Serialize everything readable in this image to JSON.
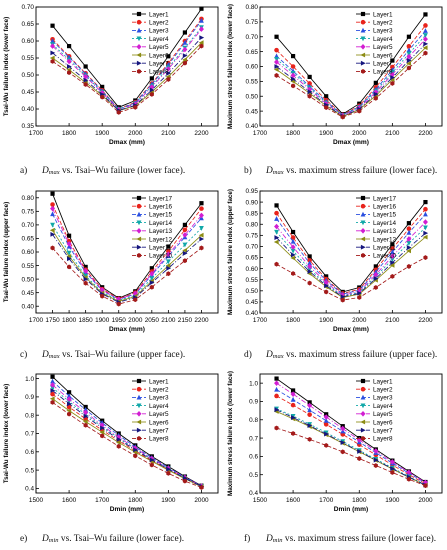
{
  "colors": {
    "Layer1": "#000000",
    "Layer2": "#e8231c",
    "Layer3": "#2a4fe0",
    "Layer4": "#10a8a8",
    "Layer5": "#d21ed2",
    "Layer6": "#8c8c14",
    "Layer7": "#16167e",
    "Layer8": "#a31a1a",
    "Layer17": "#000000",
    "Layer16": "#e8231c",
    "Layer15": "#2a4fe0",
    "Layer14": "#10a8a8",
    "Layer13": "#d21ed2",
    "Layer12": "#8c8c14",
    "Layer11": "#16167e",
    "Layer10": "#a31a1a"
  },
  "captions": [
    {
      "prefix": "a)",
      "var": "D",
      "sub": "max",
      "text": " vs. Tsai–Wu failure (lower face)."
    },
    {
      "prefix": "b)",
      "var": "D",
      "sub": "max",
      "text": " vs. maximum stress failure (lower face)."
    },
    {
      "prefix": "c)",
      "var": "D",
      "sub": "max",
      "text": " vs. Tsai–Wu failure (upper face)."
    },
    {
      "prefix": "d)",
      "var": "D",
      "sub": "max",
      "text": " vs. maximum stress failure (upper face)."
    },
    {
      "prefix": "e)",
      "var": "D",
      "sub": "min",
      "text": " vs. Tsai–Wu failure (lower face)."
    },
    {
      "prefix": "f)",
      "var": "D",
      "sub": "min",
      "text": " vs. maximum stress failure (lower face)."
    }
  ],
  "chart_data": [
    {
      "type": "line",
      "xlabel": "Dmax (mm)",
      "ylabel": "Tsai-Wu failure index (lower face)",
      "xlim": [
        1700,
        2250
      ],
      "ylim": [
        0.35,
        0.7
      ],
      "xticks": [
        "1700",
        "1800",
        "1900",
        "2000",
        "2100",
        "2200"
      ],
      "yticks": [
        "0.35",
        "0.40",
        "0.45",
        "0.50",
        "0.55",
        "0.60",
        "0.65",
        "0.70"
      ],
      "x": [
        1750,
        1800,
        1850,
        1900,
        1950,
        2000,
        2050,
        2100,
        2150,
        2200
      ],
      "series": [
        {
          "name": "Layer1",
          "values": [
            0.645,
            0.585,
            0.525,
            0.465,
            0.405,
            0.425,
            0.49,
            0.555,
            0.625,
            0.695
          ]
        },
        {
          "name": "Layer2",
          "values": [
            0.605,
            0.555,
            0.505,
            0.455,
            0.4,
            0.42,
            0.475,
            0.535,
            0.6,
            0.665
          ]
        },
        {
          "name": "Layer3",
          "values": [
            0.6,
            0.552,
            0.503,
            0.453,
            0.4,
            0.418,
            0.473,
            0.53,
            0.595,
            0.66
          ]
        },
        {
          "name": "Layer4",
          "values": [
            0.59,
            0.545,
            0.498,
            0.45,
            0.399,
            0.416,
            0.468,
            0.522,
            0.58,
            0.64
          ]
        },
        {
          "name": "Layer5",
          "values": [
            0.585,
            0.54,
            0.495,
            0.448,
            0.398,
            0.414,
            0.465,
            0.518,
            0.575,
            0.635
          ]
        },
        {
          "name": "Layer6",
          "values": [
            0.55,
            0.515,
            0.478,
            0.44,
            0.395,
            0.409,
            0.45,
            0.495,
            0.545,
            0.595
          ]
        },
        {
          "name": "Layer7",
          "values": [
            0.565,
            0.525,
            0.485,
            0.443,
            0.396,
            0.411,
            0.456,
            0.505,
            0.557,
            0.61
          ]
        },
        {
          "name": "Layer8",
          "values": [
            0.54,
            0.507,
            0.472,
            0.435,
            0.39,
            0.405,
            0.443,
            0.487,
            0.535,
            0.585
          ]
        }
      ]
    },
    {
      "type": "line",
      "xlabel": "Dmax (mm)",
      "ylabel": "Maximum stress failure index (lower face)",
      "xlim": [
        1700,
        2250
      ],
      "ylim": [
        0.4,
        0.8
      ],
      "xticks": [
        "1700",
        "1800",
        "1900",
        "2000",
        "2100",
        "2200"
      ],
      "yticks": [
        "0.40",
        "0.45",
        "0.50",
        "0.55",
        "0.60",
        "0.65",
        "0.70",
        "0.75",
        "0.80"
      ],
      "x": [
        1750,
        1800,
        1850,
        1900,
        1950,
        2000,
        2050,
        2100,
        2150,
        2200
      ],
      "series": [
        {
          "name": "Layer1",
          "values": [
            0.7,
            0.635,
            0.565,
            0.5,
            0.44,
            0.475,
            0.545,
            0.62,
            0.7,
            0.775
          ]
        },
        {
          "name": "Layer2",
          "values": [
            0.655,
            0.6,
            0.543,
            0.487,
            0.438,
            0.468,
            0.53,
            0.598,
            0.668,
            0.738
          ]
        },
        {
          "name": "Layer3",
          "values": [
            0.635,
            0.585,
            0.533,
            0.482,
            0.437,
            0.465,
            0.523,
            0.588,
            0.655,
            0.72
          ]
        },
        {
          "name": "Layer4",
          "values": [
            0.625,
            0.578,
            0.528,
            0.478,
            0.436,
            0.463,
            0.518,
            0.58,
            0.643,
            0.705
          ]
        },
        {
          "name": "Layer5",
          "values": [
            0.615,
            0.57,
            0.523,
            0.475,
            0.435,
            0.461,
            0.514,
            0.573,
            0.633,
            0.692
          ]
        },
        {
          "name": "Layer6",
          "values": [
            0.59,
            0.55,
            0.51,
            0.468,
            0.432,
            0.455,
            0.502,
            0.556,
            0.61,
            0.663
          ]
        },
        {
          "name": "Layer7",
          "values": [
            0.6,
            0.558,
            0.515,
            0.471,
            0.433,
            0.457,
            0.507,
            0.563,
            0.62,
            0.676
          ]
        },
        {
          "name": "Layer8",
          "values": [
            0.57,
            0.535,
            0.5,
            0.462,
            0.43,
            0.45,
            0.493,
            0.543,
            0.595,
            0.645
          ]
        }
      ]
    },
    {
      "type": "line",
      "xlabel": "Dmax (mm)",
      "ylabel": "Tsai-Wu failure index (upper face)",
      "xlim": [
        1700,
        2250
      ],
      "ylim": [
        0.375,
        0.825
      ],
      "xticks": [
        "1700",
        "1750",
        "1800",
        "1850",
        "1900",
        "1950",
        "2000",
        "2050",
        "2100",
        "2150",
        "2200"
      ],
      "yticks": [
        "0.40",
        "0.45",
        "0.50",
        "0.55",
        "0.60",
        "0.65",
        "0.70",
        "0.75",
        "0.80"
      ],
      "x": [
        1750,
        1800,
        1850,
        1900,
        1950,
        2000,
        2050,
        2100,
        2150,
        2200
      ],
      "series": [
        {
          "name": "Layer17",
          "values": [
            0.815,
            0.66,
            0.545,
            0.47,
            0.43,
            0.455,
            0.54,
            0.62,
            0.7,
            0.78
          ]
        },
        {
          "name": "Layer16",
          "values": [
            0.775,
            0.64,
            0.535,
            0.463,
            0.428,
            0.45,
            0.528,
            0.603,
            0.682,
            0.76
          ]
        },
        {
          "name": "Layer15",
          "values": [
            0.74,
            0.62,
            0.525,
            0.458,
            0.425,
            0.445,
            0.515,
            0.585,
            0.655,
            0.725
          ]
        },
        {
          "name": "Layer14",
          "values": [
            0.7,
            0.597,
            0.512,
            0.452,
            0.422,
            0.44,
            0.503,
            0.565,
            0.627,
            0.688
          ]
        },
        {
          "name": "Layer13",
          "values": [
            0.76,
            0.63,
            0.53,
            0.46,
            0.426,
            0.447,
            0.52,
            0.592,
            0.663,
            0.735
          ]
        },
        {
          "name": "Layer12",
          "values": [
            0.68,
            0.584,
            0.506,
            0.448,
            0.418,
            0.436,
            0.493,
            0.55,
            0.606,
            0.662
          ]
        },
        {
          "name": "Layer11",
          "values": [
            0.665,
            0.575,
            0.5,
            0.445,
            0.415,
            0.432,
            0.487,
            0.54,
            0.595,
            0.648
          ]
        },
        {
          "name": "Layer10",
          "values": [
            0.615,
            0.545,
            0.485,
            0.437,
            0.408,
            0.424,
            0.47,
            0.52,
            0.568,
            0.615
          ]
        }
      ]
    },
    {
      "type": "line",
      "xlabel": "Dmax (mm)",
      "ylabel": "Maximum stress failure index (upper face)",
      "xlim": [
        1700,
        2250
      ],
      "ylim": [
        0.4,
        0.95
      ],
      "xticks": [
        "1700",
        "1800",
        "1900",
        "2000",
        "2100",
        "2200"
      ],
      "yticks": [
        "0.40",
        "0.45",
        "0.50",
        "0.55",
        "0.60",
        "0.65",
        "0.70",
        "0.75",
        "0.80",
        "0.85",
        "0.90",
        "0.95"
      ],
      "x": [
        1750,
        1800,
        1850,
        1900,
        1950,
        2000,
        2050,
        2100,
        2150,
        2200
      ],
      "series": [
        {
          "name": "Layer17",
          "values": [
            0.885,
            0.765,
            0.655,
            0.565,
            0.495,
            0.515,
            0.61,
            0.71,
            0.805,
            0.9
          ]
        },
        {
          "name": "Layer16",
          "values": [
            0.85,
            0.74,
            0.637,
            0.553,
            0.488,
            0.507,
            0.595,
            0.69,
            0.78,
            0.868
          ]
        },
        {
          "name": "Layer15",
          "values": [
            0.825,
            0.722,
            0.625,
            0.546,
            0.485,
            0.503,
            0.585,
            0.675,
            0.762,
            0.845
          ]
        },
        {
          "name": "Layer14",
          "values": [
            0.765,
            0.68,
            0.598,
            0.53,
            0.477,
            0.493,
            0.565,
            0.642,
            0.715,
            0.785
          ]
        },
        {
          "name": "Layer13",
          "values": [
            0.79,
            0.697,
            0.61,
            0.537,
            0.48,
            0.497,
            0.573,
            0.655,
            0.734,
            0.81
          ]
        },
        {
          "name": "Layer12",
          "values": [
            0.72,
            0.648,
            0.578,
            0.518,
            0.47,
            0.485,
            0.548,
            0.615,
            0.68,
            0.742
          ]
        },
        {
          "name": "Layer11",
          "values": [
            0.74,
            0.662,
            0.587,
            0.523,
            0.473,
            0.489,
            0.555,
            0.627,
            0.695,
            0.76
          ]
        },
        {
          "name": "Layer10",
          "values": [
            0.62,
            0.578,
            0.535,
            0.495,
            0.458,
            0.47,
            0.515,
            0.565,
            0.61,
            0.65
          ]
        }
      ]
    },
    {
      "type": "line",
      "xlabel": "Dmin (mm)",
      "ylabel": "Tsai-Wu failure index (lower face)",
      "xlim": [
        1500,
        2050
      ],
      "ylim": [
        0.375,
        1.025
      ],
      "xticks": [
        "1500",
        "1600",
        "1700",
        "1800",
        "1900",
        "2000"
      ],
      "yticks": [
        "0.4",
        "0.5",
        "0.6",
        "0.7",
        "0.8",
        "0.9",
        "1.0"
      ],
      "x": [
        1550,
        1600,
        1650,
        1700,
        1750,
        1800,
        1850,
        1900,
        1950,
        2000
      ],
      "series": [
        {
          "name": "Layer1",
          "values": [
            1.01,
            0.925,
            0.845,
            0.77,
            0.7,
            0.635,
            0.575,
            0.52,
            0.465,
            0.415
          ]
        },
        {
          "name": "Layer2",
          "values": [
            0.915,
            0.845,
            0.78,
            0.718,
            0.66,
            0.605,
            0.552,
            0.502,
            0.455,
            0.41
          ]
        },
        {
          "name": "Layer3",
          "values": [
            0.985,
            0.905,
            0.83,
            0.758,
            0.69,
            0.627,
            0.568,
            0.514,
            0.462,
            0.413
          ]
        },
        {
          "name": "Layer4",
          "values": [
            0.95,
            0.875,
            0.805,
            0.738,
            0.675,
            0.616,
            0.56,
            0.508,
            0.458,
            0.412
          ]
        },
        {
          "name": "Layer5",
          "values": [
            0.965,
            0.888,
            0.815,
            0.745,
            0.68,
            0.62,
            0.563,
            0.51,
            0.46,
            0.412
          ]
        },
        {
          "name": "Layer6",
          "values": [
            0.89,
            0.825,
            0.765,
            0.707,
            0.651,
            0.598,
            0.548,
            0.499,
            0.453,
            0.409
          ]
        },
        {
          "name": "Layer7",
          "values": [
            0.935,
            0.862,
            0.795,
            0.73,
            0.668,
            0.611,
            0.556,
            0.505,
            0.456,
            0.411
          ]
        },
        {
          "name": "Layer8",
          "values": [
            0.87,
            0.806,
            0.745,
            0.687,
            0.63,
            0.578,
            0.528,
            0.482,
            0.44,
            0.405
          ]
        }
      ]
    },
    {
      "type": "line",
      "xlabel": "Dmin (mm)",
      "ylabel": "Maximum stress failure index (lower face)",
      "xlim": [
        1500,
        2050
      ],
      "ylim": [
        0.4,
        1.05
      ],
      "xticks": [
        "1500",
        "1600",
        "1700",
        "1800",
        "1900",
        "2000"
      ],
      "yticks": [
        "0.4",
        "0.5",
        "0.6",
        "0.7",
        "0.8",
        "0.9",
        "1.0"
      ],
      "x": [
        1550,
        1600,
        1650,
        1700,
        1750,
        1800,
        1850,
        1900,
        1950,
        2000
      ],
      "series": [
        {
          "name": "Layer1",
          "values": [
            1.025,
            0.96,
            0.895,
            0.83,
            0.765,
            0.7,
            0.638,
            0.577,
            0.518,
            0.46
          ]
        },
        {
          "name": "Layer2",
          "values": [
            0.93,
            0.88,
            0.828,
            0.775,
            0.72,
            0.664,
            0.608,
            0.553,
            0.5,
            0.45
          ]
        },
        {
          "name": "Layer3",
          "values": [
            0.965,
            0.91,
            0.853,
            0.795,
            0.737,
            0.678,
            0.62,
            0.563,
            0.508,
            0.455
          ]
        },
        {
          "name": "Layer4",
          "values": [
            0.86,
            0.82,
            0.776,
            0.73,
            0.682,
            0.633,
            0.585,
            0.537,
            0.49,
            0.445
          ]
        },
        {
          "name": "Layer5",
          "values": [
            1.0,
            0.94,
            0.878,
            0.815,
            0.752,
            0.69,
            0.63,
            0.57,
            0.513,
            0.458
          ]
        },
        {
          "name": "Layer6",
          "values": [
            0.845,
            0.805,
            0.763,
            0.718,
            0.672,
            0.625,
            0.578,
            0.531,
            0.485,
            0.442
          ]
        },
        {
          "name": "Layer7",
          "values": [
            0.855,
            0.812,
            0.768,
            0.722,
            0.675,
            0.627,
            0.58,
            0.533,
            0.487,
            0.443
          ]
        },
        {
          "name": "Layer8",
          "values": [
            0.755,
            0.725,
            0.693,
            0.66,
            0.625,
            0.588,
            0.55,
            0.512,
            0.475,
            0.44
          ]
        }
      ]
    }
  ]
}
